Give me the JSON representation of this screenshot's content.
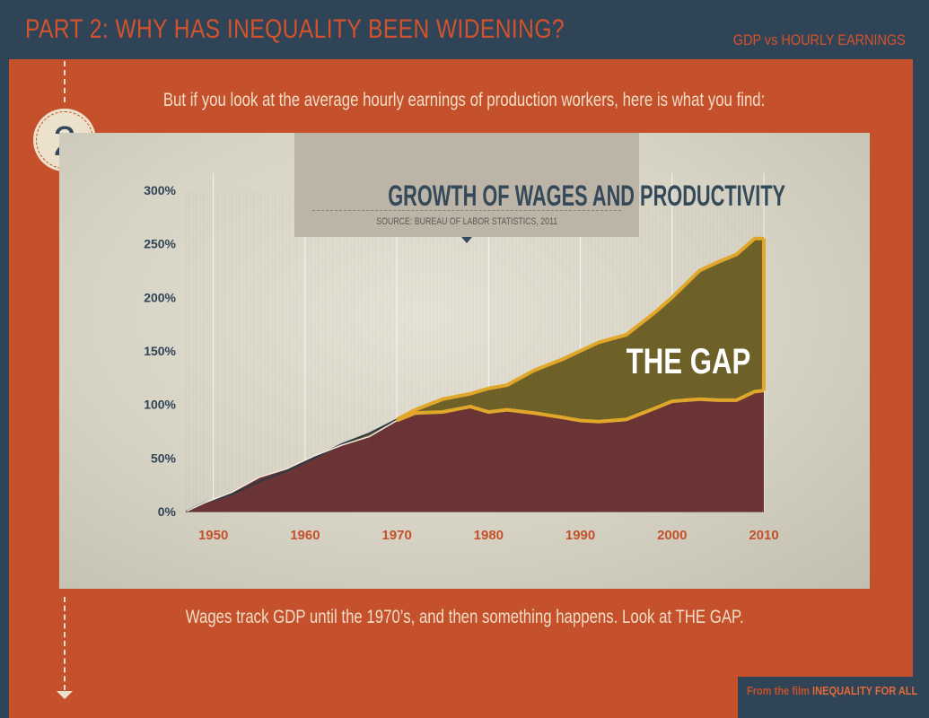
{
  "header": {
    "title": "PART 2: WHY HAS INEQUALITY BEEN WIDENING?",
    "section": "GDP vs HOURLY EARNINGS"
  },
  "step_number": "2",
  "lead_text": "But if you look at the average hourly earnings of production workers, here is what you find:",
  "footer_text": "Wages track GDP until the 1970’s, and then something happens.  Look at THE GAP.",
  "credit": {
    "prefix": "From the film ",
    "film": "INEQUALITY FOR ALL"
  },
  "colors": {
    "background": "#2f4457",
    "panel": "#c5502c",
    "wages": "#6b3536",
    "gap": "#6e6229",
    "gap_line": "#e0a72a"
  },
  "chart_data": {
    "type": "area",
    "title": "GROWTH OF WAGES AND PRODUCTIVITY",
    "source": "SOURCE: BUREAU OF LABOR STATISTICS, 2011",
    "annotation": "THE GAP",
    "ylim": [
      0,
      300
    ],
    "xlim": [
      1947,
      2010
    ],
    "yticks": [
      0,
      50,
      100,
      150,
      200,
      250,
      300
    ],
    "ytick_labels": [
      "0%",
      "50%",
      "100%",
      "150%",
      "200%",
      "250%",
      "300%"
    ],
    "xticks": [
      1950,
      1960,
      1970,
      1980,
      1990,
      2000,
      2010
    ],
    "xtick_labels": [
      "1950",
      "1960",
      "1970",
      "1980",
      "1990",
      "2000",
      "2010"
    ],
    "series": [
      {
        "name": "Productivity (GDP)",
        "x": [
          1947,
          1949,
          1952,
          1955,
          1958,
          1961,
          1964,
          1967,
          1970,
          1972,
          1975,
          1978,
          1980,
          1982,
          1985,
          1988,
          1990,
          1992,
          1995,
          1998,
          2000,
          2003,
          2005,
          2007,
          2009,
          2010
        ],
        "values": [
          0,
          8,
          16,
          28,
          38,
          50,
          63,
          73,
          86,
          95,
          105,
          110,
          115,
          118,
          132,
          142,
          150,
          158,
          165,
          185,
          200,
          225,
          233,
          240,
          255,
          255
        ]
      },
      {
        "name": "Hourly earnings",
        "x": [
          1947,
          1949,
          1952,
          1955,
          1958,
          1961,
          1964,
          1967,
          1970,
          1972,
          1975,
          1978,
          1980,
          1982,
          1985,
          1988,
          1990,
          1992,
          1995,
          1998,
          2000,
          2003,
          2005,
          2007,
          2009,
          2010
        ],
        "values": [
          0,
          8,
          18,
          32,
          40,
          52,
          62,
          70,
          85,
          92,
          93,
          98,
          93,
          95,
          92,
          88,
          85,
          84,
          86,
          96,
          103,
          105,
          104,
          104,
          112,
          113
        ]
      }
    ]
  }
}
